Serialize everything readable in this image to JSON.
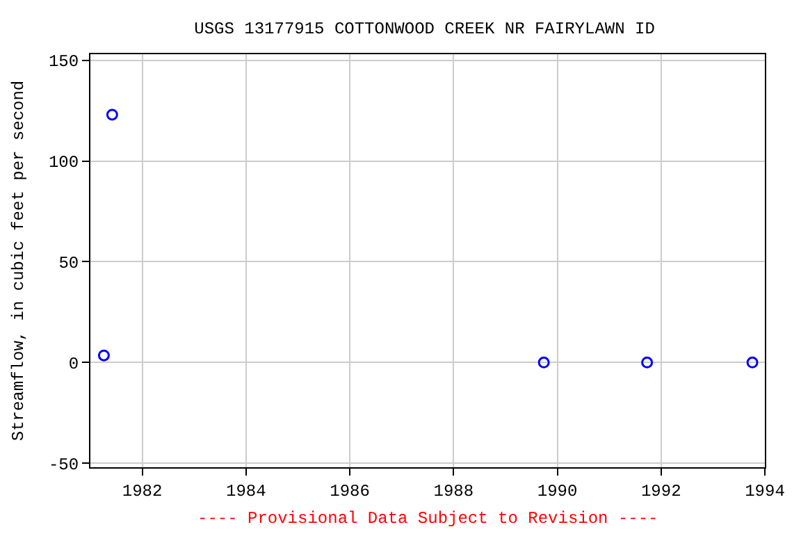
{
  "chart_data": {
    "type": "scatter",
    "title": "USGS 13177915 COTTONWOOD CREEK NR FAIRYLAWN ID",
    "ylabel": "Streamflow, in cubic feet per second",
    "x": [
      1981.26,
      1981.42,
      1989.74,
      1991.73,
      1993.76
    ],
    "series": [
      {
        "color": "#0000ff",
        "values": [
          3.5,
          123,
          0,
          0,
          0
        ]
      }
    ],
    "xlim": [
      1981.0,
      1994.0
    ],
    "xticks": [
      1982,
      1984,
      1986,
      1988,
      1990,
      1992,
      1994
    ],
    "ylim": [
      -52,
      153
    ],
    "yticks": [
      -50,
      0,
      50,
      100,
      150
    ],
    "grid": true,
    "marker": "circle",
    "annotations": [
      "---- Provisional Data Subject to Revision ----"
    ]
  }
}
